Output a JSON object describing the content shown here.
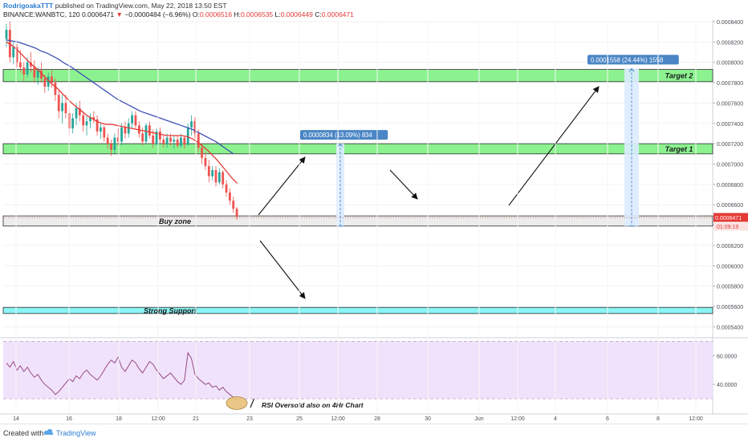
{
  "header": {
    "author": "RodrigoakaTTT",
    "published": " published on TradingView.com, May 22, 2018 13:50 EST",
    "symbol": "BINANCE:WANBTC, 120",
    "last": "0.0006471",
    "change_arrow": "▼",
    "change": "−0.0000484 (−6.96%)",
    "open_label": "O:",
    "open": "0.0006516",
    "high_label": "H:",
    "high": "0.0006535",
    "low_label": "L:",
    "low": "0.0006449",
    "close_label": "C:",
    "close": "0.0006471"
  },
  "footer": {
    "created_with": "Created with",
    "brand": "TradingView"
  },
  "colors": {
    "up": "#26a69a",
    "down": "#ef5350",
    "ema_fast": "#e53935",
    "ema_slow": "#3f51b5",
    "zone_green": "#8bf28f",
    "zone_cyan": "#8cf4f4",
    "rsi_line": "#8e3a7a",
    "rsi_band": "#f1e2fb",
    "measure_bg": "#4a86c5",
    "measure_fill": "#dcecff"
  },
  "chart_data": {
    "type": "candlestick",
    "symbol": "WANBTC",
    "exchange": "BINANCE",
    "interval": "120",
    "ylim": [
      0.00053,
      0.00084
    ],
    "y_ticks": [
      "0.0008400",
      "0.0008200",
      "0.0008000",
      "0.0007800",
      "0.0007600",
      "0.0007400",
      "0.0007200",
      "0.0007000",
      "0.0006800",
      "0.0006600",
      "0.0006400",
      "0.0006200",
      "0.0006000",
      "0.0005800",
      "0.0005600",
      "0.0005400"
    ],
    "x_ticks": [
      "14",
      "16",
      "18",
      "12:00",
      "21",
      "23",
      "25",
      "12:00",
      "28",
      "30",
      "Jun",
      "12:00",
      "4",
      "6",
      "8",
      "12:00"
    ],
    "candles": [
      {
        "o": 0.000823,
        "h": 0.000838,
        "l": 0.000815,
        "c": 0.000832
      },
      {
        "o": 0.000832,
        "h": 0.00084,
        "l": 0.0008,
        "c": 0.000805
      },
      {
        "o": 0.000805,
        "h": 0.00082,
        "l": 0.000798,
        "c": 0.000815
      },
      {
        "o": 0.000815,
        "h": 0.000818,
        "l": 0.000795,
        "c": 0.0008
      },
      {
        "o": 0.0008,
        "h": 0.000812,
        "l": 0.00079,
        "c": 0.000795
      },
      {
        "o": 0.000795,
        "h": 0.0008,
        "l": 0.000782,
        "c": 0.000788
      },
      {
        "o": 0.000788,
        "h": 0.000805,
        "l": 0.000785,
        "c": 0.0008
      },
      {
        "o": 0.0008,
        "h": 0.00081,
        "l": 0.00079,
        "c": 0.000796
      },
      {
        "o": 0.000796,
        "h": 0.000802,
        "l": 0.00078,
        "c": 0.000785
      },
      {
        "o": 0.000785,
        "h": 0.000795,
        "l": 0.000778,
        "c": 0.000792
      },
      {
        "o": 0.000792,
        "h": 0.0008,
        "l": 0.00078,
        "c": 0.000784
      },
      {
        "o": 0.000784,
        "h": 0.000788,
        "l": 0.00077,
        "c": 0.000776
      },
      {
        "o": 0.000776,
        "h": 0.00079,
        "l": 0.000772,
        "c": 0.000786
      },
      {
        "o": 0.000786,
        "h": 0.000792,
        "l": 0.000775,
        "c": 0.00078
      },
      {
        "o": 0.00078,
        "h": 0.000784,
        "l": 0.000762,
        "c": 0.000768
      },
      {
        "o": 0.000768,
        "h": 0.000772,
        "l": 0.000745,
        "c": 0.000752
      },
      {
        "o": 0.000752,
        "h": 0.000768,
        "l": 0.00074,
        "c": 0.00076
      },
      {
        "o": 0.00076,
        "h": 0.000768,
        "l": 0.000745,
        "c": 0.00075
      },
      {
        "o": 0.00075,
        "h": 0.000756,
        "l": 0.000728,
        "c": 0.000735
      },
      {
        "o": 0.000735,
        "h": 0.00075,
        "l": 0.00073,
        "c": 0.000745
      },
      {
        "o": 0.000745,
        "h": 0.00076,
        "l": 0.000738,
        "c": 0.000755
      },
      {
        "o": 0.000755,
        "h": 0.000762,
        "l": 0.000742,
        "c": 0.000748
      },
      {
        "o": 0.000748,
        "h": 0.000752,
        "l": 0.000732,
        "c": 0.000738
      },
      {
        "o": 0.000738,
        "h": 0.000748,
        "l": 0.000728,
        "c": 0.000742
      },
      {
        "o": 0.000742,
        "h": 0.00075,
        "l": 0.000735,
        "c": 0.000746
      },
      {
        "o": 0.000746,
        "h": 0.000752,
        "l": 0.00074,
        "c": 0.000744
      },
      {
        "o": 0.000744,
        "h": 0.000748,
        "l": 0.000728,
        "c": 0.000732
      },
      {
        "o": 0.000732,
        "h": 0.00074,
        "l": 0.000725,
        "c": 0.000736
      },
      {
        "o": 0.000736,
        "h": 0.000738,
        "l": 0.000722,
        "c": 0.000726
      },
      {
        "o": 0.000726,
        "h": 0.00073,
        "l": 0.000715,
        "c": 0.00072
      },
      {
        "o": 0.00072,
        "h": 0.000724,
        "l": 0.000708,
        "c": 0.000714
      },
      {
        "o": 0.000714,
        "h": 0.00073,
        "l": 0.00071,
        "c": 0.000726
      },
      {
        "o": 0.000726,
        "h": 0.000735,
        "l": 0.000718,
        "c": 0.000722
      },
      {
        "o": 0.000722,
        "h": 0.00074,
        "l": 0.000718,
        "c": 0.000736
      },
      {
        "o": 0.000736,
        "h": 0.000742,
        "l": 0.000725,
        "c": 0.00073
      },
      {
        "o": 0.00073,
        "h": 0.000745,
        "l": 0.000726,
        "c": 0.00074
      },
      {
        "o": 0.00074,
        "h": 0.000752,
        "l": 0.000735,
        "c": 0.000748
      },
      {
        "o": 0.000748,
        "h": 0.000752,
        "l": 0.000735,
        "c": 0.000738
      },
      {
        "o": 0.000738,
        "h": 0.000742,
        "l": 0.000726,
        "c": 0.00073
      },
      {
        "o": 0.00073,
        "h": 0.000736,
        "l": 0.000718,
        "c": 0.000722
      },
      {
        "o": 0.000722,
        "h": 0.00074,
        "l": 0.00072,
        "c": 0.000738
      },
      {
        "o": 0.000738,
        "h": 0.000742,
        "l": 0.000725,
        "c": 0.000728
      },
      {
        "o": 0.000728,
        "h": 0.000734,
        "l": 0.000716,
        "c": 0.00072
      },
      {
        "o": 0.00072,
        "h": 0.000735,
        "l": 0.000718,
        "c": 0.000732
      },
      {
        "o": 0.000732,
        "h": 0.000736,
        "l": 0.00072,
        "c": 0.000724
      },
      {
        "o": 0.000724,
        "h": 0.000728,
        "l": 0.000716,
        "c": 0.00072
      },
      {
        "o": 0.00072,
        "h": 0.00073,
        "l": 0.000716,
        "c": 0.000726
      },
      {
        "o": 0.000726,
        "h": 0.00073,
        "l": 0.000718,
        "c": 0.000722
      },
      {
        "o": 0.000722,
        "h": 0.000728,
        "l": 0.000715,
        "c": 0.000724
      },
      {
        "o": 0.000724,
        "h": 0.000728,
        "l": 0.000716,
        "c": 0.000718
      },
      {
        "o": 0.000718,
        "h": 0.00073,
        "l": 0.000716,
        "c": 0.000726
      },
      {
        "o": 0.000726,
        "h": 0.000728,
        "l": 0.000715,
        "c": 0.000719
      },
      {
        "o": 0.000719,
        "h": 0.00074,
        "l": 0.000718,
        "c": 0.000736
      },
      {
        "o": 0.000736,
        "h": 0.000748,
        "l": 0.000728,
        "c": 0.000742
      },
      {
        "o": 0.000742,
        "h": 0.000746,
        "l": 0.000725,
        "c": 0.00073
      },
      {
        "o": 0.00073,
        "h": 0.000734,
        "l": 0.000712,
        "c": 0.000716
      },
      {
        "o": 0.000716,
        "h": 0.00072,
        "l": 0.0007,
        "c": 0.000706
      },
      {
        "o": 0.000706,
        "h": 0.000712,
        "l": 0.000694,
        "c": 0.000698
      },
      {
        "o": 0.000698,
        "h": 0.000704,
        "l": 0.000682,
        "c": 0.000688
      },
      {
        "o": 0.000688,
        "h": 0.000698,
        "l": 0.000684,
        "c": 0.000694
      },
      {
        "o": 0.000694,
        "h": 0.000698,
        "l": 0.000678,
        "c": 0.000682
      },
      {
        "o": 0.000682,
        "h": 0.000696,
        "l": 0.00068,
        "c": 0.000692
      },
      {
        "o": 0.000692,
        "h": 0.000694,
        "l": 0.000676,
        "c": 0.00068
      },
      {
        "o": 0.00068,
        "h": 0.000684,
        "l": 0.000668,
        "c": 0.000672
      },
      {
        "o": 0.000672,
        "h": 0.000676,
        "l": 0.00066,
        "c": 0.000664
      },
      {
        "o": 0.000664,
        "h": 0.000668,
        "l": 0.000652,
        "c": 0.000656
      },
      {
        "o": 0.000656,
        "h": 0.000658,
        "l": 0.000645,
        "c": 0.000648
      }
    ],
    "ema_fast": [
      0.00082,
      0.000817,
      0.000813,
      0.000808,
      0.000803,
      0.000798,
      0.000794,
      0.000789,
      0.000784,
      0.000779,
      0.000775,
      0.00077,
      0.000765,
      0.00076,
      0.000756,
      0.000752,
      0.000748,
      0.000745,
      0.000742,
      0.00074,
      0.000739,
      0.000739,
      0.000738,
      0.000737,
      0.000736,
      0.000735,
      0.000734,
      0.000733,
      0.000732,
      0.000731,
      0.00073,
      0.000729,
      0.000728,
      0.000728,
      0.000728,
      0.000728,
      0.000727,
      0.000725,
      0.000722,
      0.000718,
      0.000714,
      0.000709,
      0.000704,
      0.000698,
      0.000692,
      0.000686,
      0.000681
    ],
    "ema_slow": [
      0.000822,
      0.000821,
      0.00082,
      0.000818,
      0.000816,
      0.000814,
      0.000811,
      0.000809,
      0.000806,
      0.000803,
      0.000799,
      0.000796,
      0.000792,
      0.000788,
      0.000784,
      0.00078,
      0.000776,
      0.000772,
      0.000768,
      0.000764,
      0.000761,
      0.000758,
      0.000755,
      0.000752,
      0.00075,
      0.000748,
      0.000746,
      0.000744,
      0.000742,
      0.00074,
      0.000738,
      0.000736,
      0.000734,
      0.000731,
      0.000728,
      0.000725,
      0.000722,
      0.000718,
      0.000714,
      0.00071
    ],
    "zones": [
      {
        "label": "Target 2",
        "low": 0.000781,
        "high": 0.000793,
        "color": "#8bf28f"
      },
      {
        "label": "Target 1",
        "low": 0.00071,
        "high": 0.00072,
        "color": "#8bf28f"
      },
      {
        "label": "Buy zone",
        "low": 0.000639,
        "high": 0.000649,
        "color": "#ececec"
      },
      {
        "label": "Strong Support",
        "low": 0.000553,
        "high": 0.000559,
        "color": "#8cf4f4"
      }
    ],
    "measures": [
      {
        "label": "0.0000834 (13.09%) 834",
        "from": 0.000639,
        "to": 0.00072
      },
      {
        "label": "0.0001558 (24.44%) 1558",
        "from": 0.000639,
        "to": 0.000794
      }
    ],
    "price_labels": {
      "last": "0.0006471",
      "countdown": "01:09:19"
    },
    "rsi": {
      "ticks": [
        "60.0000",
        "40.0000"
      ],
      "ylim": [
        20,
        72
      ],
      "band": [
        30,
        70
      ],
      "values": [
        55,
        52,
        56,
        50,
        53,
        49,
        52,
        48,
        45,
        47,
        43,
        40,
        38,
        36,
        33,
        35,
        38,
        41,
        44,
        42,
        46,
        44,
        48,
        50,
        47,
        45,
        43,
        46,
        50,
        54,
        57,
        55,
        59,
        52,
        49,
        53,
        57,
        55,
        51,
        48,
        52,
        56,
        54,
        50,
        47,
        44,
        46,
        48,
        45,
        42,
        40,
        43,
        62,
        58,
        47,
        44,
        42,
        40,
        41,
        38,
        39,
        36,
        38,
        35,
        33,
        31,
        29
      ]
    },
    "annotations": {
      "rsi_note": "RSI Oversold also on 4Hr Chart"
    }
  }
}
